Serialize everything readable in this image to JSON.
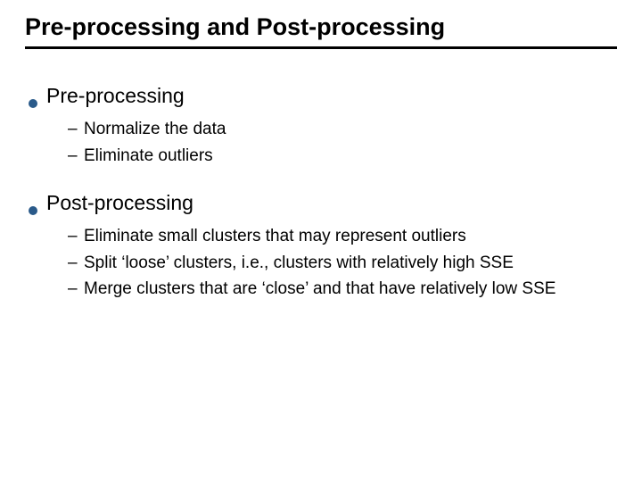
{
  "colors": {
    "bullet": "#2a5a8a",
    "text": "#000000",
    "background": "#ffffff",
    "underline": "#000000"
  },
  "title": "Pre-processing and Post-processing",
  "sections": [
    {
      "heading": "Pre-processing",
      "items": [
        "Normalize the data",
        "Eliminate outliers"
      ]
    },
    {
      "heading": "Post-processing",
      "items": [
        "Eliminate small clusters that may represent outliers",
        "Split ‘loose’ clusters, i.e., clusters with relatively high SSE",
        "Merge clusters that are ‘close’ and that have relatively low SSE"
      ]
    }
  ]
}
